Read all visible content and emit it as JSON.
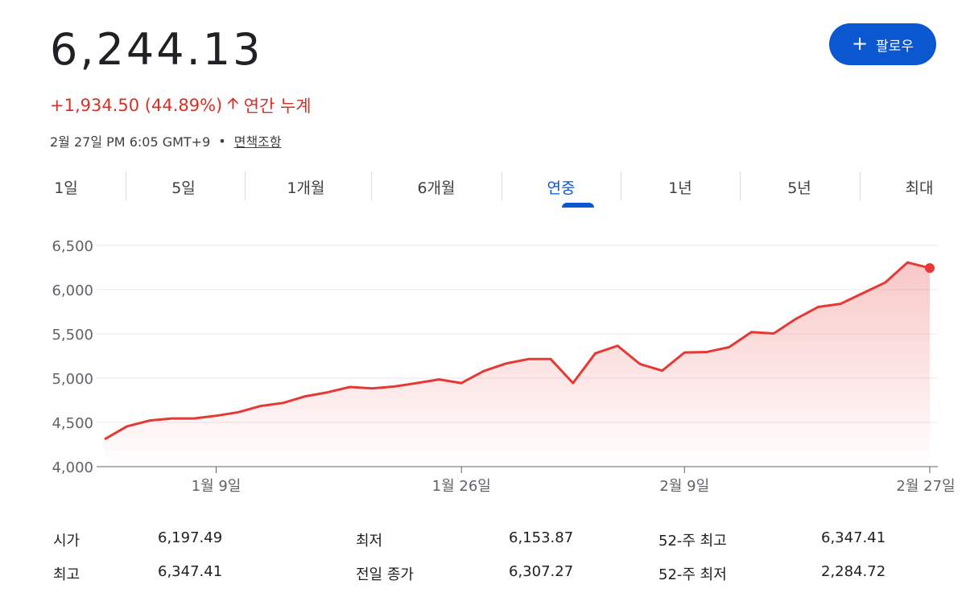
{
  "header": {
    "price": "6,244.13",
    "change": "+1,934.50 (44.89%)",
    "change_suffix": "연간 누계",
    "timestamp": "2월 27일 PM 6:05 GMT+9",
    "separator": "•",
    "disclaimer": "면책조항",
    "follow_label": "팔로우"
  },
  "colors": {
    "up": "#d93025",
    "accent": "#0b57d0"
  },
  "tabs": [
    {
      "label": "1일",
      "active": false
    },
    {
      "label": "5일",
      "active": false
    },
    {
      "label": "1개월",
      "active": false
    },
    {
      "label": "6개월",
      "active": false
    },
    {
      "label": "연중",
      "active": true
    },
    {
      "label": "1년",
      "active": false
    },
    {
      "label": "5년",
      "active": false
    },
    {
      "label": "최대",
      "active": false
    }
  ],
  "chart_data": {
    "type": "area",
    "ylim": [
      4000,
      6500
    ],
    "y_ticks": [
      "6,500",
      "6,000",
      "5,500",
      "5,000",
      "4,500",
      "4,000"
    ],
    "x_ticks": [
      {
        "label": "1월 9일",
        "index": 5
      },
      {
        "label": "1월 26일",
        "index": 16
      },
      {
        "label": "2월 9일",
        "index": 26
      },
      {
        "label": "2월 27일",
        "index": 37
      }
    ],
    "series": [
      {
        "values": [
          4310,
          4455,
          4520,
          4545,
          4545,
          4575,
          4615,
          4685,
          4720,
          4795,
          4840,
          4900,
          4885,
          4905,
          4945,
          4985,
          4945,
          5080,
          5165,
          5215,
          5215,
          4945,
          5280,
          5365,
          5160,
          5085,
          5290,
          5295,
          5350,
          5520,
          5505,
          5670,
          5805,
          5840,
          5960,
          6080,
          6307.27,
          6244.13
        ]
      }
    ],
    "grid": true
  },
  "stats": {
    "col1": [
      {
        "label": "시가",
        "value": "6,197.49"
      },
      {
        "label": "최고",
        "value": "6,347.41"
      }
    ],
    "col2": [
      {
        "label": "최저",
        "value": "6,153.87"
      },
      {
        "label": "전일 종가",
        "value": "6,307.27"
      }
    ],
    "col3": [
      {
        "label": "52-주 최고",
        "value": "6,347.41"
      },
      {
        "label": "52-주 최저",
        "value": "2,284.72"
      }
    ]
  }
}
